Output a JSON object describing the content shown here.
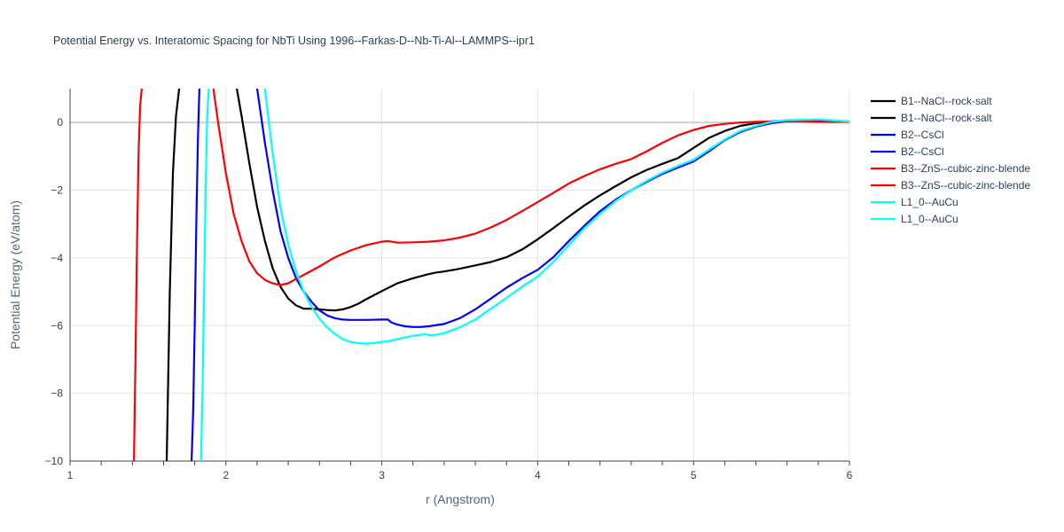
{
  "chart_data": {
    "type": "line",
    "title": "Potential Energy vs. Interatomic Spacing for NbTi Using 1996--Farkas-D--Nb-Ti-Al--LAMMPS--ipr1",
    "xlabel": "r (Angstrom)",
    "ylabel": "Potential Energy (eV/atom)",
    "xlim": [
      1,
      6
    ],
    "ylim": [
      -10,
      1
    ],
    "xticks": [
      1,
      2,
      3,
      4,
      5,
      6
    ],
    "yticks": [
      0,
      -2,
      -4,
      -6,
      -8,
      -10
    ],
    "xtick_labels": [
      "1",
      "2",
      "3",
      "4",
      "5",
      "6"
    ],
    "ytick_labels": [
      "0",
      "−2",
      "−4",
      "−6",
      "−8",
      "−10"
    ],
    "grid": true,
    "legend_position": "top-right",
    "series": [
      {
        "name": "B1--NaCl--rock-salt",
        "color": "#000000",
        "x": [
          1.62,
          1.64,
          1.66,
          1.68,
          1.7
        ],
        "y": [
          -10,
          -5,
          -1.5,
          0.2,
          1
        ]
      },
      {
        "name": "B1--NaCl--rock-salt",
        "color": "#000000",
        "x": [
          2.07,
          2.1,
          2.15,
          2.2,
          2.25,
          2.3,
          2.35,
          2.4,
          2.45,
          2.5,
          2.55,
          2.6,
          2.65,
          2.7,
          2.75,
          2.8,
          2.85,
          2.9,
          3.0,
          3.1,
          3.2,
          3.3,
          3.35,
          3.4,
          3.5,
          3.6,
          3.7,
          3.8,
          3.9,
          4.0,
          4.1,
          4.2,
          4.3,
          4.4,
          4.5,
          4.6,
          4.7,
          4.8,
          4.9,
          5.0,
          5.1,
          5.2,
          5.3,
          5.4,
          5.5,
          5.6,
          5.7,
          5.8,
          5.9,
          6.0
        ],
        "y": [
          1.0,
          0.2,
          -1.2,
          -2.5,
          -3.5,
          -4.3,
          -4.85,
          -5.2,
          -5.4,
          -5.5,
          -5.5,
          -5.52,
          -5.54,
          -5.55,
          -5.52,
          -5.45,
          -5.35,
          -5.22,
          -4.98,
          -4.75,
          -4.6,
          -4.48,
          -4.43,
          -4.4,
          -4.32,
          -4.22,
          -4.12,
          -3.98,
          -3.75,
          -3.45,
          -3.12,
          -2.78,
          -2.45,
          -2.15,
          -1.88,
          -1.62,
          -1.4,
          -1.22,
          -1.05,
          -0.75,
          -0.45,
          -0.25,
          -0.1,
          -0.02,
          0.03,
          0.06,
          0.06,
          0.05,
          0.03,
          0.02
        ]
      },
      {
        "name": "B2--CsCl",
        "color": "#0000ff",
        "x": [
          1.78,
          1.79,
          1.8,
          1.81,
          1.82,
          1.83
        ],
        "y": [
          -10,
          -8.5,
          -6,
          -3,
          -0.5,
          1
        ]
      },
      {
        "name": "B2--CsCl",
        "color": "#0000ff",
        "x": [
          2.2,
          2.25,
          2.3,
          2.35,
          2.4,
          2.45,
          2.5,
          2.55,
          2.6,
          2.65,
          2.7,
          2.75,
          2.8,
          2.9,
          3.0,
          3.04,
          3.06,
          3.1,
          3.15,
          3.2,
          3.25,
          3.3,
          3.4,
          3.5,
          3.6,
          3.7,
          3.8,
          3.9,
          4.0,
          4.1,
          4.2,
          4.3,
          4.4,
          4.5,
          4.6,
          4.7,
          4.8,
          4.9,
          5.0,
          5.1,
          5.2,
          5.3,
          5.4,
          5.5,
          5.6,
          5.7,
          5.8,
          5.9,
          6.0
        ],
        "y": [
          1.0,
          -0.6,
          -2.0,
          -3.2,
          -4.0,
          -4.6,
          -5.0,
          -5.3,
          -5.55,
          -5.7,
          -5.78,
          -5.82,
          -5.83,
          -5.83,
          -5.82,
          -5.82,
          -5.9,
          -5.97,
          -6.02,
          -6.04,
          -6.04,
          -6.02,
          -5.95,
          -5.78,
          -5.52,
          -5.2,
          -4.88,
          -4.6,
          -4.35,
          -3.98,
          -3.5,
          -3.05,
          -2.62,
          -2.28,
          -2.0,
          -1.75,
          -1.52,
          -1.33,
          -1.15,
          -0.85,
          -0.52,
          -0.28,
          -0.12,
          -0.02,
          0.04,
          0.06,
          0.06,
          0.05,
          0.03
        ]
      },
      {
        "name": "B3--ZnS--cubic-zinc-blende",
        "color": "#ff0000",
        "x": [
          1.41,
          1.42,
          1.43,
          1.44,
          1.45,
          1.46
        ],
        "y": [
          -10,
          -7,
          -3.5,
          -0.8,
          0.5,
          1
        ]
      },
      {
        "name": "B3--ZnS--cubic-zinc-blende",
        "color": "#ff0000",
        "x": [
          1.92,
          1.95,
          2.0,
          2.05,
          2.1,
          2.15,
          2.2,
          2.25,
          2.3,
          2.35,
          2.4,
          2.45,
          2.5,
          2.6,
          2.7,
          2.8,
          2.9,
          3.0,
          3.04,
          3.1,
          3.2,
          3.3,
          3.4,
          3.5,
          3.6,
          3.7,
          3.8,
          3.9,
          4.0,
          4.1,
          4.2,
          4.3,
          4.4,
          4.5,
          4.6,
          4.7,
          4.8,
          4.9,
          5.0,
          5.1,
          5.2,
          5.3,
          5.4,
          5.5,
          5.6,
          5.7,
          5.8,
          5.9,
          6.0
        ],
        "y": [
          1.0,
          0.0,
          -1.5,
          -2.7,
          -3.5,
          -4.1,
          -4.45,
          -4.65,
          -4.75,
          -4.8,
          -4.75,
          -4.62,
          -4.5,
          -4.25,
          -3.98,
          -3.78,
          -3.62,
          -3.52,
          -3.5,
          -3.55,
          -3.54,
          -3.52,
          -3.48,
          -3.4,
          -3.28,
          -3.1,
          -2.88,
          -2.62,
          -2.35,
          -2.08,
          -1.8,
          -1.58,
          -1.38,
          -1.22,
          -1.08,
          -0.85,
          -0.6,
          -0.38,
          -0.22,
          -0.1,
          -0.04,
          0.0,
          0.02,
          0.03,
          0.03,
          0.03,
          0.02,
          0.02,
          0.02
        ]
      },
      {
        "name": "L1_0--AuCu",
        "color": "#00ffff",
        "x": [
          1.84,
          1.85,
          1.86,
          1.87,
          1.88,
          1.89
        ],
        "y": [
          -10,
          -8,
          -5,
          -2,
          0.2,
          1
        ]
      },
      {
        "name": "L1_0--AuCu",
        "color": "#00ffff",
        "x": [
          2.25,
          2.3,
          2.35,
          2.4,
          2.45,
          2.5,
          2.55,
          2.6,
          2.65,
          2.7,
          2.75,
          2.8,
          2.85,
          2.9,
          2.95,
          3.0,
          3.05,
          3.1,
          3.15,
          3.2,
          3.25,
          3.28,
          3.3,
          3.35,
          3.4,
          3.5,
          3.6,
          3.7,
          3.8,
          3.9,
          4.0,
          4.1,
          4.2,
          4.3,
          4.4,
          4.5,
          4.6,
          4.7,
          4.8,
          4.9,
          5.0,
          5.1,
          5.2,
          5.3,
          5.4,
          5.5,
          5.6,
          5.7,
          5.8,
          5.9,
          6.0
        ],
        "y": [
          1.0,
          -0.9,
          -2.5,
          -3.6,
          -4.4,
          -5.0,
          -5.45,
          -5.8,
          -6.05,
          -6.25,
          -6.4,
          -6.48,
          -6.52,
          -6.53,
          -6.52,
          -6.48,
          -6.45,
          -6.4,
          -6.35,
          -6.3,
          -6.27,
          -6.25,
          -6.28,
          -6.27,
          -6.22,
          -6.05,
          -5.82,
          -5.5,
          -5.18,
          -4.85,
          -4.55,
          -4.12,
          -3.62,
          -3.12,
          -2.7,
          -2.32,
          -2.0,
          -1.72,
          -1.48,
          -1.28,
          -1.1,
          -0.8,
          -0.5,
          -0.25,
          -0.1,
          0.02,
          0.07,
          0.08,
          0.09,
          0.06,
          0.03
        ]
      }
    ]
  }
}
